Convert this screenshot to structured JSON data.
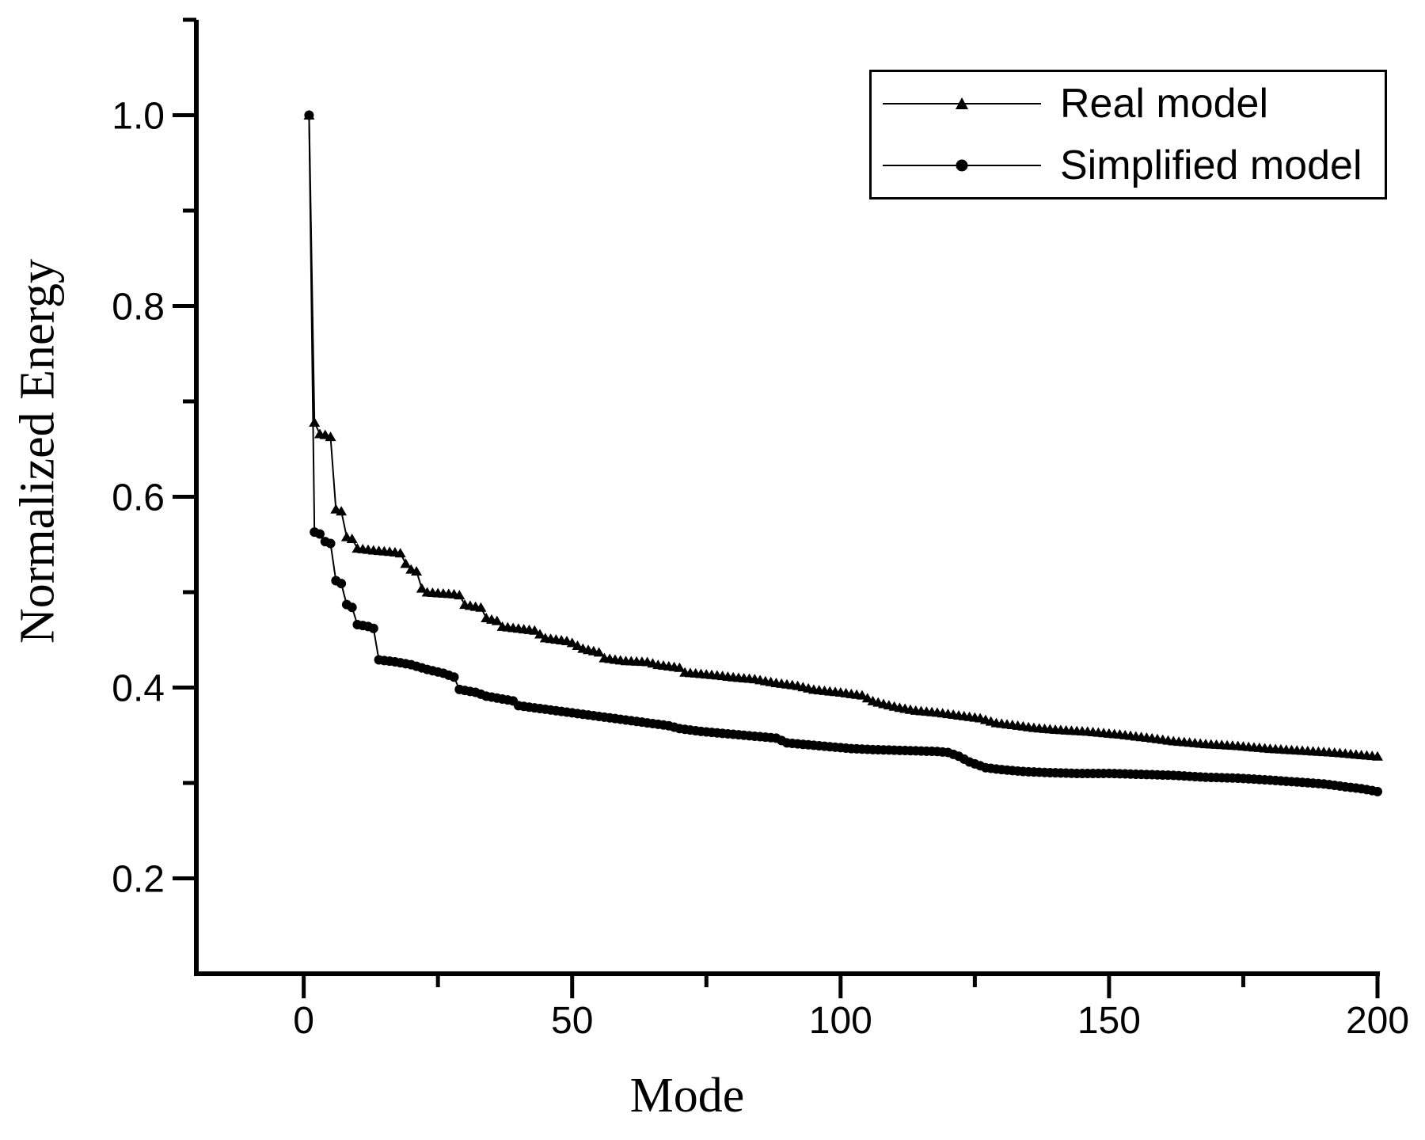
{
  "figure": {
    "background": "#ffffff",
    "foreground": "#000000"
  },
  "chart_data": {
    "type": "line",
    "title": "",
    "xlabel": "Mode",
    "ylabel": "Normalized Energy",
    "xlim": [
      -20,
      200
    ],
    "ylim": [
      0.1,
      1.1
    ],
    "grid": false,
    "legend_position": "top-right",
    "axis_color": "#000000",
    "x_major_ticks": [
      {
        "value": 0,
        "label": "0"
      },
      {
        "value": 50,
        "label": "50"
      },
      {
        "value": 100,
        "label": "100"
      },
      {
        "value": 150,
        "label": "150"
      },
      {
        "value": 200,
        "label": "200"
      }
    ],
    "x_minor_ticks": [
      25,
      75,
      125,
      175
    ],
    "y_major_ticks": [
      {
        "value": 0.2,
        "label": "0.2"
      },
      {
        "value": 0.4,
        "label": "0.4"
      },
      {
        "value": 0.6,
        "label": "0.6"
      },
      {
        "value": 0.8,
        "label": "0.8"
      },
      {
        "value": 1.0,
        "label": "1.0"
      }
    ],
    "y_minor_ticks": [
      0.3,
      0.5,
      0.7,
      0.9,
      1.1
    ],
    "marker_every": 1,
    "series": [
      {
        "name": "Real model",
        "marker": "triangle",
        "color": "#000000",
        "points": [
          [
            1,
            1.0
          ],
          [
            2,
            0.678
          ],
          [
            3,
            0.666
          ],
          [
            4,
            0.665
          ],
          [
            5,
            0.663
          ],
          [
            6,
            0.587
          ],
          [
            7,
            0.585
          ],
          [
            8,
            0.558
          ],
          [
            9,
            0.556
          ],
          [
            10,
            0.546
          ],
          [
            13,
            0.544
          ],
          [
            17,
            0.542
          ],
          [
            18,
            0.541
          ],
          [
            19,
            0.53
          ],
          [
            20,
            0.524
          ],
          [
            21,
            0.522
          ],
          [
            22,
            0.504
          ],
          [
            23,
            0.5
          ],
          [
            28,
            0.498
          ],
          [
            29,
            0.497
          ],
          [
            30,
            0.487
          ],
          [
            33,
            0.484
          ],
          [
            34,
            0.473
          ],
          [
            36,
            0.47
          ],
          [
            37,
            0.464
          ],
          [
            43,
            0.46
          ],
          [
            45,
            0.452
          ],
          [
            49,
            0.449
          ],
          [
            50,
            0.447
          ],
          [
            52,
            0.441
          ],
          [
            55,
            0.437
          ],
          [
            56,
            0.431
          ],
          [
            60,
            0.428
          ],
          [
            64,
            0.427
          ],
          [
            66,
            0.424
          ],
          [
            70,
            0.421
          ],
          [
            71,
            0.416
          ],
          [
            77,
            0.413
          ],
          [
            80,
            0.411
          ],
          [
            84,
            0.409
          ],
          [
            88,
            0.405
          ],
          [
            92,
            0.402
          ],
          [
            95,
            0.398
          ],
          [
            100,
            0.395
          ],
          [
            104,
            0.392
          ],
          [
            106,
            0.386
          ],
          [
            108,
            0.383
          ],
          [
            111,
            0.379
          ],
          [
            114,
            0.376
          ],
          [
            118,
            0.374
          ],
          [
            122,
            0.371
          ],
          [
            126,
            0.368
          ],
          [
            129,
            0.363
          ],
          [
            132,
            0.361
          ],
          [
            136,
            0.358
          ],
          [
            140,
            0.356
          ],
          [
            146,
            0.354
          ],
          [
            152,
            0.351
          ],
          [
            158,
            0.347
          ],
          [
            162,
            0.344
          ],
          [
            168,
            0.341
          ],
          [
            174,
            0.339
          ],
          [
            180,
            0.336
          ],
          [
            186,
            0.334
          ],
          [
            192,
            0.332
          ],
          [
            196,
            0.33
          ],
          [
            200,
            0.328
          ]
        ]
      },
      {
        "name": "Simplified model",
        "marker": "circle",
        "color": "#000000",
        "points": [
          [
            1,
            1.0
          ],
          [
            2,
            0.563
          ],
          [
            3,
            0.561
          ],
          [
            4,
            0.553
          ],
          [
            5,
            0.551
          ],
          [
            6,
            0.512
          ],
          [
            7,
            0.509
          ],
          [
            8,
            0.487
          ],
          [
            9,
            0.484
          ],
          [
            10,
            0.466
          ],
          [
            12,
            0.464
          ],
          [
            13,
            0.462
          ],
          [
            14,
            0.429
          ],
          [
            17,
            0.427
          ],
          [
            20,
            0.424
          ],
          [
            23,
            0.419
          ],
          [
            26,
            0.415
          ],
          [
            28,
            0.411
          ],
          [
            29,
            0.398
          ],
          [
            32,
            0.395
          ],
          [
            34,
            0.391
          ],
          [
            37,
            0.388
          ],
          [
            39,
            0.386
          ],
          [
            40,
            0.381
          ],
          [
            44,
            0.378
          ],
          [
            48,
            0.375
          ],
          [
            52,
            0.372
          ],
          [
            56,
            0.369
          ],
          [
            60,
            0.366
          ],
          [
            64,
            0.363
          ],
          [
            68,
            0.36
          ],
          [
            70,
            0.357
          ],
          [
            74,
            0.354
          ],
          [
            78,
            0.352
          ],
          [
            82,
            0.35
          ],
          [
            86,
            0.348
          ],
          [
            88,
            0.347
          ],
          [
            90,
            0.342
          ],
          [
            94,
            0.34
          ],
          [
            98,
            0.338
          ],
          [
            102,
            0.336
          ],
          [
            106,
            0.335
          ],
          [
            112,
            0.334
          ],
          [
            118,
            0.333
          ],
          [
            120,
            0.332
          ],
          [
            122,
            0.328
          ],
          [
            124,
            0.322
          ],
          [
            126,
            0.318
          ],
          [
            127,
            0.316
          ],
          [
            130,
            0.314
          ],
          [
            134,
            0.312
          ],
          [
            138,
            0.311
          ],
          [
            144,
            0.31
          ],
          [
            150,
            0.31
          ],
          [
            156,
            0.309
          ],
          [
            162,
            0.308
          ],
          [
            168,
            0.306
          ],
          [
            174,
            0.305
          ],
          [
            180,
            0.303
          ],
          [
            185,
            0.301
          ],
          [
            190,
            0.299
          ],
          [
            194,
            0.296
          ],
          [
            197,
            0.294
          ],
          [
            200,
            0.291
          ]
        ]
      }
    ]
  },
  "legend": {
    "items": [
      {
        "label": "Real model",
        "marker": "triangle"
      },
      {
        "label": "Simplified model",
        "marker": "circle"
      }
    ]
  }
}
